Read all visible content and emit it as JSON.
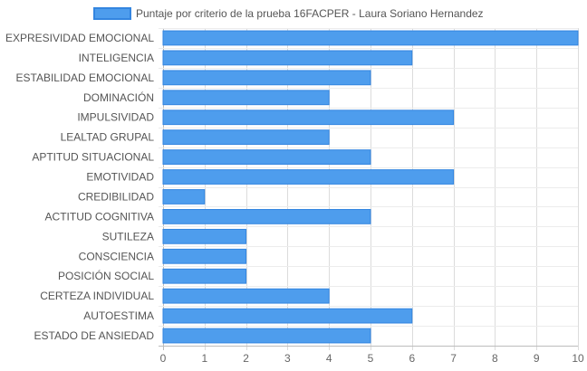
{
  "chart_data": {
    "type": "bar",
    "orientation": "horizontal",
    "categories": [
      "EXPRESIVIDAD EMOCIONAL",
      "INTELIGENCIA",
      "ESTABILIDAD EMOCIONAL",
      "DOMINACIÓN",
      "IMPULSIVIDAD",
      "LEALTAD GRUPAL",
      "APTITUD SITUACIONAL",
      "EMOTIVIDAD",
      "CREDIBILIDAD",
      "ACTITUD COGNITIVA",
      "SUTILEZA",
      "CONSCIENCIA",
      "POSICIÓN SOCIAL",
      "CERTEZA INDIVIDUAL",
      "AUTOESTIMA",
      "ESTADO DE ANSIEDAD"
    ],
    "series": [
      {
        "name": "Puntaje por criterio de la prueba 16FACPER - Laura Soriano Hernandez",
        "values": [
          10,
          6,
          5,
          4,
          7,
          4,
          5,
          7,
          1,
          5,
          2,
          2,
          2,
          4,
          6,
          5
        ],
        "color": "#4e9ded",
        "border_color": "#3385e0"
      }
    ],
    "x_ticks": [
      "0",
      "1",
      "2",
      "3",
      "4",
      "5",
      "6",
      "7",
      "8",
      "9",
      "10"
    ],
    "xlim": [
      0,
      10
    ],
    "grid": true,
    "legend_position": "top",
    "title": "",
    "xlabel": "",
    "ylabel": ""
  }
}
